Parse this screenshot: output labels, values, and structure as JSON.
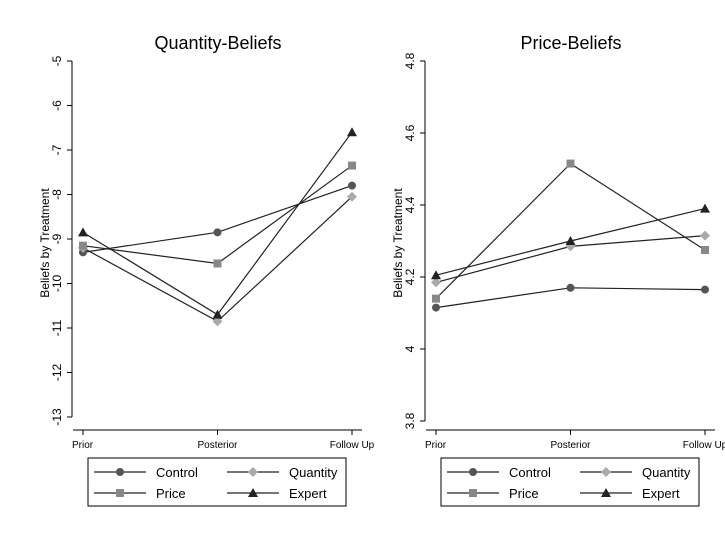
{
  "colors": {
    "Control": "#555555",
    "Quantity": "#aaaaaa",
    "Price": "#888888",
    "Expert": "#222222",
    "line": "#222222"
  },
  "chart_data": [
    {
      "type": "line",
      "title": "Quantity-Beliefs",
      "xlabel": "",
      "ylabel": "Beliefs by Treatment",
      "categories": [
        "Prior",
        "Posterior",
        "Follow Up"
      ],
      "ylim": [
        -13,
        -5
      ],
      "yticks": [
        -5,
        -6,
        -7,
        -8,
        -9,
        -10,
        -11,
        -12,
        -13
      ],
      "grid": false,
      "legend_position": "bottom",
      "series": [
        {
          "name": "Control",
          "marker": "circle",
          "values": [
            -9.3,
            -8.85,
            -7.8
          ]
        },
        {
          "name": "Quantity",
          "marker": "diamond",
          "values": [
            -9.2,
            -10.85,
            -8.05
          ]
        },
        {
          "name": "Price",
          "marker": "square",
          "values": [
            -9.15,
            -9.55,
            -7.35
          ]
        },
        {
          "name": "Expert",
          "marker": "triangle",
          "values": [
            -8.85,
            -10.7,
            -6.6
          ]
        }
      ]
    },
    {
      "type": "line",
      "title": "Price-Beliefs",
      "xlabel": "",
      "ylabel": "Beliefs by Treatment",
      "categories": [
        "Prior",
        "Posterior",
        "Follow Up"
      ],
      "ylim": [
        3.8,
        4.8
      ],
      "yticks": [
        "4.8",
        "4.6",
        "4.4",
        "4.2",
        "4",
        "3.8"
      ],
      "grid": false,
      "legend_position": "bottom",
      "series": [
        {
          "name": "Control",
          "marker": "circle",
          "values": [
            4.115,
            4.17,
            4.165
          ]
        },
        {
          "name": "Quantity",
          "marker": "diamond",
          "values": [
            4.185,
            4.285,
            4.315
          ]
        },
        {
          "name": "Price",
          "marker": "square",
          "values": [
            4.14,
            4.515,
            4.275
          ]
        },
        {
          "name": "Expert",
          "marker": "triangle",
          "values": [
            4.205,
            4.3,
            4.39
          ]
        }
      ]
    }
  ]
}
